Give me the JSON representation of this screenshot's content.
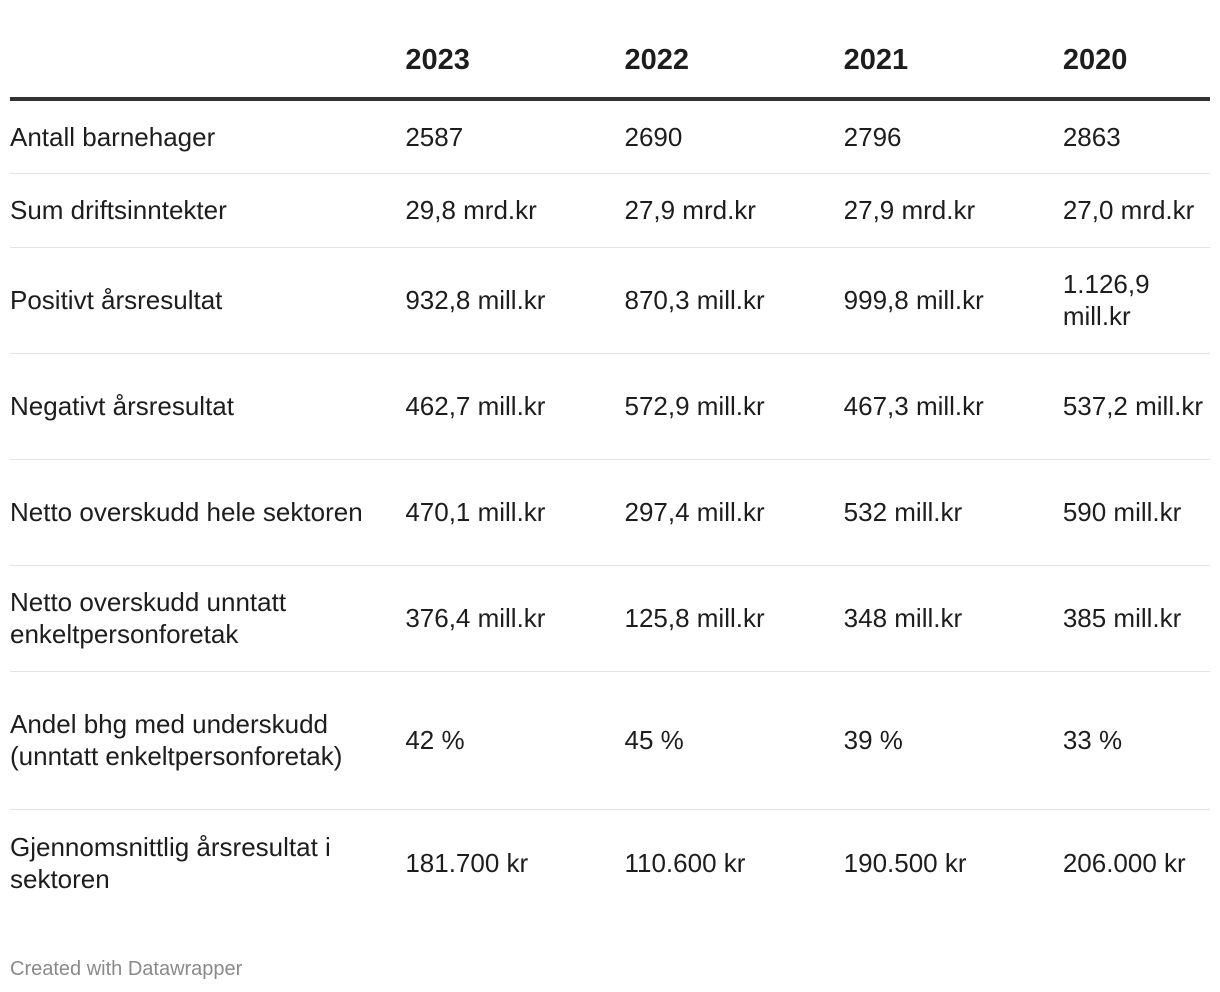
{
  "chart_data": {
    "type": "table",
    "columns": [
      "",
      "2023",
      "2022",
      "2021",
      "2020"
    ],
    "rows": [
      {
        "label": "Antall barnehager",
        "values": [
          "2587",
          "2690",
          "2796",
          "2863"
        ]
      },
      {
        "label": "Sum driftsinntekter",
        "values": [
          "29,8 mrd.kr",
          "27,9 mrd.kr",
          "27,9 mrd.kr",
          "27,0 mrd.kr"
        ]
      },
      {
        "label": "Positivt årsresultat",
        "values": [
          "932,8 mill.kr",
          "870,3 mill.kr",
          "999,8 mill.kr",
          "1.126,9 mill.kr"
        ]
      },
      {
        "label": "Negativt årsresultat",
        "values": [
          "462,7 mill.kr",
          "572,9 mill.kr",
          "467,3 mill.kr",
          "537,2 mill.kr"
        ]
      },
      {
        "label": "Netto overskudd hele sektoren",
        "values": [
          "470,1 mill.kr",
          "297,4 mill.kr",
          "532 mill.kr",
          "590 mill.kr"
        ]
      },
      {
        "label": "Netto overskudd unntatt enkeltpersonforetak",
        "values": [
          "376,4 mill.kr",
          "125,8 mill.kr",
          "348 mill.kr",
          "385 mill.kr"
        ]
      },
      {
        "label": "Andel bhg med underskudd (unntatt enkeltpersonforetak)",
        "values": [
          "42 %",
          "45 %",
          "39 %",
          "33 %"
        ]
      },
      {
        "label": "Gjennomsnittlig årsresultat i sektoren",
        "values": [
          "181.700 kr",
          "110.600 kr",
          "190.500 kr",
          "206.000 kr"
        ]
      }
    ]
  },
  "footer": {
    "credit": "Created with Datawrapper"
  },
  "colors": {
    "text": "#1d1d1d",
    "header_rule": "#333333",
    "row_rule": "#e3e3e3",
    "footer_text": "#8a8a8a"
  }
}
